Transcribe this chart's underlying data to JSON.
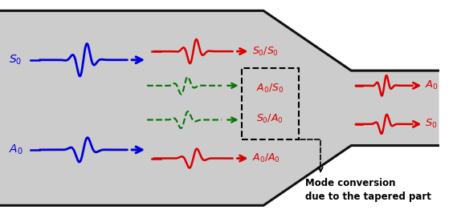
{
  "bg_color": "#ffffff",
  "plate_fill": "#cccccc",
  "plate_edge": "#111111",
  "blue_color": "#0000dd",
  "red_color": "#dd0000",
  "green_color": "#007700",
  "annotation_text": "Mode conversion\ndue to the tapered part",
  "figw": 5.69,
  "figh": 2.67,
  "dpi": 100
}
